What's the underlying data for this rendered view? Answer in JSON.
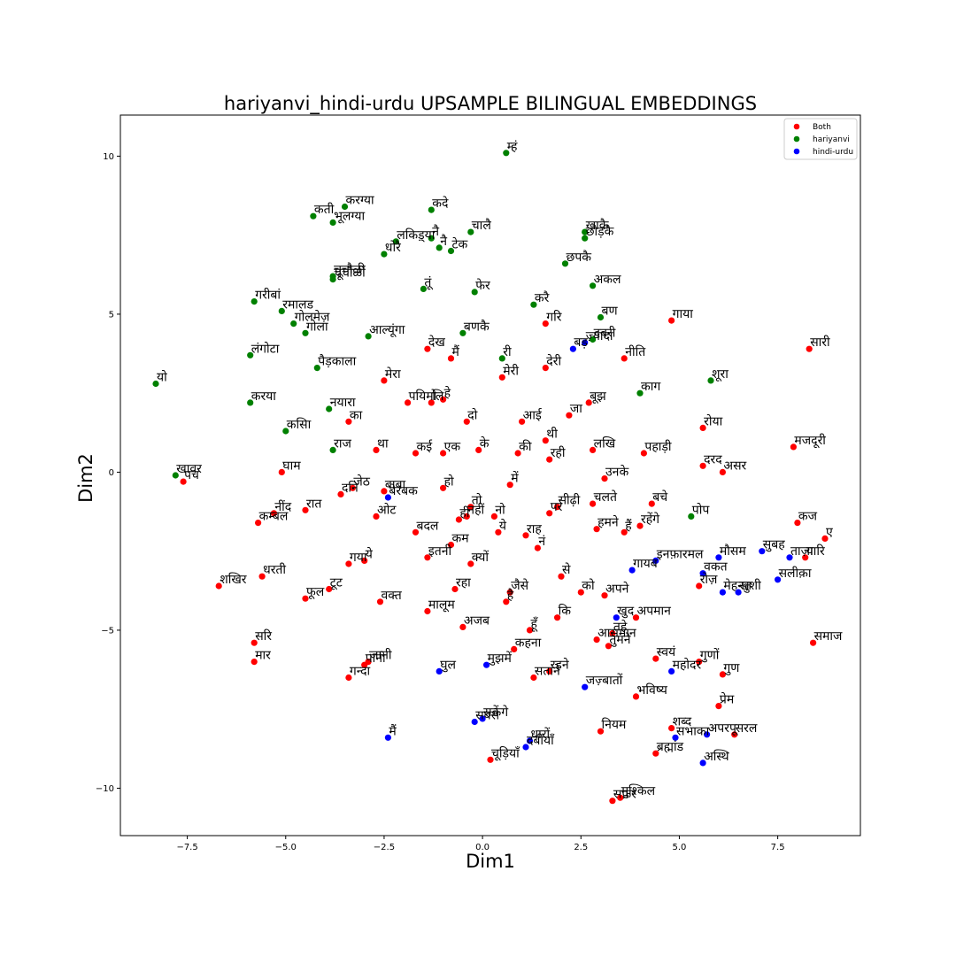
{
  "chart_data": {
    "type": "scatter",
    "title": "hariyanvi_hindi-urdu UPSAMPLE BILINGUAL EMBEDDINGS",
    "xlabel": "Dim1",
    "ylabel": "Dim2",
    "xlim": [
      -9.2,
      9.6
    ],
    "ylim": [
      -11.5,
      11.3
    ],
    "x_ticks": [
      -7.5,
      -5.0,
      -2.5,
      0.0,
      2.5,
      5.0,
      7.5
    ],
    "x_tick_labels": [
      "−7.5",
      "−5.0",
      "−2.5",
      "0.0",
      "2.5",
      "5.0",
      "7.5"
    ],
    "y_ticks": [
      -10,
      -5,
      0,
      5,
      10
    ],
    "y_tick_labels": [
      "−10",
      "−5",
      "0",
      "5",
      "10"
    ],
    "grid": false,
    "legend_position": "top-right",
    "series": [
      {
        "name": "Both",
        "color": "#ff0000",
        "points": [
          {
            "x": 8.3,
            "y": 3.9,
            "label": "सारी"
          },
          {
            "x": 4.8,
            "y": 4.8,
            "label": "गाया"
          },
          {
            "x": 1.6,
            "y": 4.7,
            "label": "गरि"
          },
          {
            "x": 3.6,
            "y": 3.6,
            "label": "नीति"
          },
          {
            "x": 1.6,
            "y": 3.3,
            "label": "देरी"
          },
          {
            "x": -0.8,
            "y": 3.6,
            "label": "मैं"
          },
          {
            "x": -1.4,
            "y": 3.9,
            "label": "देख"
          },
          {
            "x": 0.5,
            "y": 3.0,
            "label": "मेरी"
          },
          {
            "x": -2.5,
            "y": 2.9,
            "label": "मेरा"
          },
          {
            "x": -1.9,
            "y": 2.2,
            "label": "पयिमो"
          },
          {
            "x": -1.3,
            "y": 2.2,
            "label": "लि"
          },
          {
            "x": -1.0,
            "y": 2.3,
            "label": "हे"
          },
          {
            "x": 2.7,
            "y": 2.2,
            "label": "बूझ"
          },
          {
            "x": 2.2,
            "y": 1.8,
            "label": "जा"
          },
          {
            "x": -3.4,
            "y": 1.6,
            "label": "का"
          },
          {
            "x": -0.4,
            "y": 1.6,
            "label": "दो"
          },
          {
            "x": 1.0,
            "y": 1.6,
            "label": "आई"
          },
          {
            "x": 5.6,
            "y": 1.4,
            "label": "रोया"
          },
          {
            "x": 7.9,
            "y": 0.8,
            "label": "मजदूरी"
          },
          {
            "x": 1.6,
            "y": 1.0,
            "label": "थी"
          },
          {
            "x": 2.8,
            "y": 0.7,
            "label": "लखि"
          },
          {
            "x": 4.1,
            "y": 0.6,
            "label": "पहाड़ी"
          },
          {
            "x": -2.7,
            "y": 0.7,
            "label": "था"
          },
          {
            "x": -1.7,
            "y": 0.6,
            "label": "कई"
          },
          {
            "x": -1.0,
            "y": 0.6,
            "label": "एक"
          },
          {
            "x": -0.1,
            "y": 0.7,
            "label": "के"
          },
          {
            "x": 0.9,
            "y": 0.6,
            "label": "की"
          },
          {
            "x": 1.7,
            "y": 0.4,
            "label": "रही"
          },
          {
            "x": 5.6,
            "y": 0.2,
            "label": "दरद"
          },
          {
            "x": 6.1,
            "y": 0.0,
            "label": "असर"
          },
          {
            "x": -5.1,
            "y": 0.0,
            "label": "घाम"
          },
          {
            "x": 3.1,
            "y": -0.2,
            "label": "उनके"
          },
          {
            "x": -7.6,
            "y": -0.3,
            "label": "पच"
          },
          {
            "x": -3.6,
            "y": -0.7,
            "label": "दनि"
          },
          {
            "x": -3.3,
            "y": -0.5,
            "label": "जेठ"
          },
          {
            "x": -2.5,
            "y": -0.6,
            "label": "बाबा"
          },
          {
            "x": -1.0,
            "y": -0.5,
            "label": "हो"
          },
          {
            "x": 0.7,
            "y": -0.4,
            "label": "में"
          },
          {
            "x": -0.3,
            "y": -1.1,
            "label": "तो"
          },
          {
            "x": -0.4,
            "y": -1.4,
            "label": "नहीं"
          },
          {
            "x": -0.6,
            "y": -1.5,
            "label": "ही"
          },
          {
            "x": 0.3,
            "y": -1.4,
            "label": "नो"
          },
          {
            "x": 1.9,
            "y": -1.1,
            "label": "सीढ़ी"
          },
          {
            "x": 2.8,
            "y": -1.0,
            "label": "चलते"
          },
          {
            "x": 4.3,
            "y": -1.0,
            "label": "बचे"
          },
          {
            "x": -5.3,
            "y": -1.3,
            "label": "नींद"
          },
          {
            "x": -4.5,
            "y": -1.2,
            "label": "रात"
          },
          {
            "x": -5.7,
            "y": -1.6,
            "label": "कम्बल"
          },
          {
            "x": -2.7,
            "y": -1.4,
            "label": "ओट"
          },
          {
            "x": 1.7,
            "y": -1.3,
            "label": "पर"
          },
          {
            "x": 4.0,
            "y": -1.7,
            "label": "रहेंगे"
          },
          {
            "x": 8.0,
            "y": -1.6,
            "label": "कज"
          },
          {
            "x": -1.7,
            "y": -1.9,
            "label": "बदल"
          },
          {
            "x": 0.4,
            "y": -1.9,
            "label": "ये"
          },
          {
            "x": 2.9,
            "y": -1.8,
            "label": "हमने"
          },
          {
            "x": 3.6,
            "y": -1.9,
            "label": "हैं"
          },
          {
            "x": 1.1,
            "y": -2.0,
            "label": "राह"
          },
          {
            "x": 8.7,
            "y": -2.1,
            "label": "ए"
          },
          {
            "x": -0.8,
            "y": -2.3,
            "label": "कम"
          },
          {
            "x": 1.4,
            "y": -2.4,
            "label": "नं"
          },
          {
            "x": -1.4,
            "y": -2.7,
            "label": "इतनी"
          },
          {
            "x": -0.3,
            "y": -2.9,
            "label": "क्यों"
          },
          {
            "x": -3.4,
            "y": -2.9,
            "label": "गया"
          },
          {
            "x": -3.0,
            "y": -2.8,
            "label": "ये"
          },
          {
            "x": 8.2,
            "y": -2.7,
            "label": "यारि"
          },
          {
            "x": -5.6,
            "y": -3.3,
            "label": "धरती"
          },
          {
            "x": -6.7,
            "y": -3.6,
            "label": "शखिर"
          },
          {
            "x": 2.0,
            "y": -3.3,
            "label": "से"
          },
          {
            "x": 5.5,
            "y": -3.6,
            "label": "रोज़"
          },
          {
            "x": -3.9,
            "y": -3.7,
            "label": "टूट"
          },
          {
            "x": -4.5,
            "y": -4.0,
            "label": "फूल"
          },
          {
            "x": -0.7,
            "y": -3.7,
            "label": "रहा"
          },
          {
            "x": 0.7,
            "y": -3.8,
            "label": "जैसे"
          },
          {
            "x": 0.6,
            "y": -4.1,
            "label": "है"
          },
          {
            "x": 2.5,
            "y": -3.8,
            "label": "को"
          },
          {
            "x": 3.1,
            "y": -3.9,
            "label": "अपने"
          },
          {
            "x": -2.6,
            "y": -4.1,
            "label": "वक्त"
          },
          {
            "x": -1.4,
            "y": -4.4,
            "label": "मालूम"
          },
          {
            "x": 1.9,
            "y": -4.6,
            "label": "कि"
          },
          {
            "x": 3.9,
            "y": -4.6,
            "label": "अपमान"
          },
          {
            "x": -0.5,
            "y": -4.9,
            "label": "अजब"
          },
          {
            "x": 1.2,
            "y": -5.0,
            "label": "हूँ"
          },
          {
            "x": 2.9,
            "y": -5.3,
            "label": "आसमान"
          },
          {
            "x": 3.3,
            "y": -5.1,
            "label": "तहे"
          },
          {
            "x": 3.2,
            "y": -5.5,
            "label": "तुमने"
          },
          {
            "x": 8.4,
            "y": -5.4,
            "label": "समाज"
          },
          {
            "x": -5.8,
            "y": -5.4,
            "label": "सरि"
          },
          {
            "x": 0.8,
            "y": -5.6,
            "label": "कहना"
          },
          {
            "x": -5.8,
            "y": -6.0,
            "label": "मार"
          },
          {
            "x": -2.9,
            "y": -6.0,
            "label": "जानी"
          },
          {
            "x": -3.0,
            "y": -6.1,
            "label": "पानी"
          },
          {
            "x": 4.4,
            "y": -5.9,
            "label": "स्वयं"
          },
          {
            "x": 5.5,
            "y": -6.0,
            "label": "गुणों"
          },
          {
            "x": 1.7,
            "y": -6.3,
            "label": "रहने"
          },
          {
            "x": -3.4,
            "y": -6.5,
            "label": "गन्दा"
          },
          {
            "x": 1.3,
            "y": -6.5,
            "label": "सताने"
          },
          {
            "x": 6.1,
            "y": -6.4,
            "label": "गुण"
          },
          {
            "x": 3.9,
            "y": -7.1,
            "label": "भविष्य"
          },
          {
            "x": 6.0,
            "y": -7.4,
            "label": "प्रेम"
          },
          {
            "x": 4.8,
            "y": -8.1,
            "label": "शब्द"
          },
          {
            "x": 3.0,
            "y": -8.2,
            "label": "नियम"
          },
          {
            "x": 6.4,
            "y": -8.3,
            "label": "सरल"
          },
          {
            "x": 4.4,
            "y": -8.9,
            "label": "ब्रह्मांड"
          },
          {
            "x": 0.2,
            "y": -9.1,
            "label": "चूड़ियाँ"
          },
          {
            "x": 3.3,
            "y": -10.4,
            "label": "सफ़र"
          },
          {
            "x": 3.5,
            "y": -10.3,
            "label": "मुश्किल"
          }
        ]
      },
      {
        "name": "hariyanvi",
        "color": "#008000",
        "points": [
          {
            "x": 0.6,
            "y": 10.1,
            "label": "म्हं"
          },
          {
            "x": -4.3,
            "y": 8.1,
            "label": "कती"
          },
          {
            "x": -3.5,
            "y": 8.4,
            "label": "करग्या"
          },
          {
            "x": -3.8,
            "y": 7.9,
            "label": "भूलग्या"
          },
          {
            "x": -1.3,
            "y": 8.3,
            "label": "कदे"
          },
          {
            "x": -0.3,
            "y": 7.6,
            "label": "चालै"
          },
          {
            "x": -1.3,
            "y": 7.4,
            "label": "नै"
          },
          {
            "x": -1.1,
            "y": 7.1,
            "label": "नै"
          },
          {
            "x": -0.8,
            "y": 7.0,
            "label": "टेक"
          },
          {
            "x": 2.6,
            "y": 7.6,
            "label": "खाकै"
          },
          {
            "x": 2.6,
            "y": 7.4,
            "label": "छोड़कै"
          },
          {
            "x": -2.2,
            "y": 7.3,
            "label": "लकिड़्या"
          },
          {
            "x": -2.5,
            "y": 6.9,
            "label": "धोरै"
          },
          {
            "x": 2.1,
            "y": 6.6,
            "label": "छपकै"
          },
          {
            "x": -3.8,
            "y": 6.1,
            "label": "चूचौळी"
          },
          {
            "x": -3.8,
            "y": 6.2,
            "label": "चूचौळी"
          },
          {
            "x": -1.5,
            "y": 5.8,
            "label": "तूं"
          },
          {
            "x": -0.2,
            "y": 5.7,
            "label": "फेर"
          },
          {
            "x": 2.8,
            "y": 5.9,
            "label": "अकल"
          },
          {
            "x": 1.3,
            "y": 5.3,
            "label": "करै"
          },
          {
            "x": -5.8,
            "y": 5.4,
            "label": "गरीबां"
          },
          {
            "x": -5.1,
            "y": 5.1,
            "label": "रमालड"
          },
          {
            "x": -4.8,
            "y": 4.7,
            "label": "गोलमेज़"
          },
          {
            "x": -4.5,
            "y": 4.4,
            "label": "गोला"
          },
          {
            "x": -2.9,
            "y": 4.3,
            "label": "आल्यूंगा"
          },
          {
            "x": -0.5,
            "y": 4.4,
            "label": "बणकै"
          },
          {
            "x": 3.0,
            "y": 4.9,
            "label": "बण"
          },
          {
            "x": -5.9,
            "y": 3.7,
            "label": "लंगोटा"
          },
          {
            "x": 0.5,
            "y": 3.6,
            "label": "री"
          },
          {
            "x": -4.2,
            "y": 3.3,
            "label": "पैड़काला"
          },
          {
            "x": -8.3,
            "y": 2.8,
            "label": "यो"
          },
          {
            "x": 5.8,
            "y": 2.9,
            "label": "शूरा"
          },
          {
            "x": 4.0,
            "y": 2.5,
            "label": "काग"
          },
          {
            "x": -5.9,
            "y": 2.2,
            "label": "करया"
          },
          {
            "x": -3.9,
            "y": 2.0,
            "label": "नयारा"
          },
          {
            "x": -5.0,
            "y": 1.3,
            "label": "कसिा"
          },
          {
            "x": -3.8,
            "y": 0.7,
            "label": "राज"
          },
          {
            "x": -7.8,
            "y": -0.1,
            "label": "खावर"
          },
          {
            "x": 5.3,
            "y": -1.4,
            "label": "पोप"
          },
          {
            "x": 2.8,
            "y": 4.2,
            "label": "दबरी"
          }
        ]
      },
      {
        "name": "hindi-urdu",
        "color": "#0000ff",
        "points": [
          {
            "x": 2.3,
            "y": 3.9,
            "label": "बड़"
          },
          {
            "x": 2.6,
            "y": 4.1,
            "label": "ज़्यादा"
          },
          {
            "x": -2.4,
            "y": -0.8,
            "label": "बेरबक"
          },
          {
            "x": 3.8,
            "y": -3.1,
            "label": "गायब"
          },
          {
            "x": 4.4,
            "y": -2.8,
            "label": "इनफ़ारमल"
          },
          {
            "x": 6.0,
            "y": -2.7,
            "label": "मौसम"
          },
          {
            "x": 7.1,
            "y": -2.5,
            "label": "सुबह"
          },
          {
            "x": 7.8,
            "y": -2.7,
            "label": "ताज़ा"
          },
          {
            "x": 5.6,
            "y": -3.2,
            "label": "वकत"
          },
          {
            "x": 7.5,
            "y": -3.4,
            "label": "सलीक़ा"
          },
          {
            "x": 6.1,
            "y": -3.8,
            "label": "मेहनत"
          },
          {
            "x": 6.5,
            "y": -3.8,
            "label": "खुशी"
          },
          {
            "x": 3.4,
            "y": -4.6,
            "label": "खुद"
          },
          {
            "x": -1.1,
            "y": -6.3,
            "label": "घुल"
          },
          {
            "x": 0.1,
            "y": -6.1,
            "label": "मुझमें"
          },
          {
            "x": 2.6,
            "y": -6.8,
            "label": "जज़्बातों"
          },
          {
            "x": 4.8,
            "y": -6.3,
            "label": "महोदर"
          },
          {
            "x": -2.4,
            "y": -8.4,
            "label": "मैं"
          },
          {
            "x": -0.2,
            "y": -7.9,
            "label": "सबसे"
          },
          {
            "x": 0.0,
            "y": -7.8,
            "label": "सकेंगे"
          },
          {
            "x": 1.2,
            "y": -8.5,
            "label": "धारों"
          },
          {
            "x": 4.9,
            "y": -8.4,
            "label": "सभाका"
          },
          {
            "x": 5.7,
            "y": -8.3,
            "label": "अपरपू"
          },
          {
            "x": 5.6,
            "y": -9.2,
            "label": "अस्थि"
          },
          {
            "x": 1.1,
            "y": -8.7,
            "label": "दबीयाँ"
          }
        ]
      }
    ]
  }
}
